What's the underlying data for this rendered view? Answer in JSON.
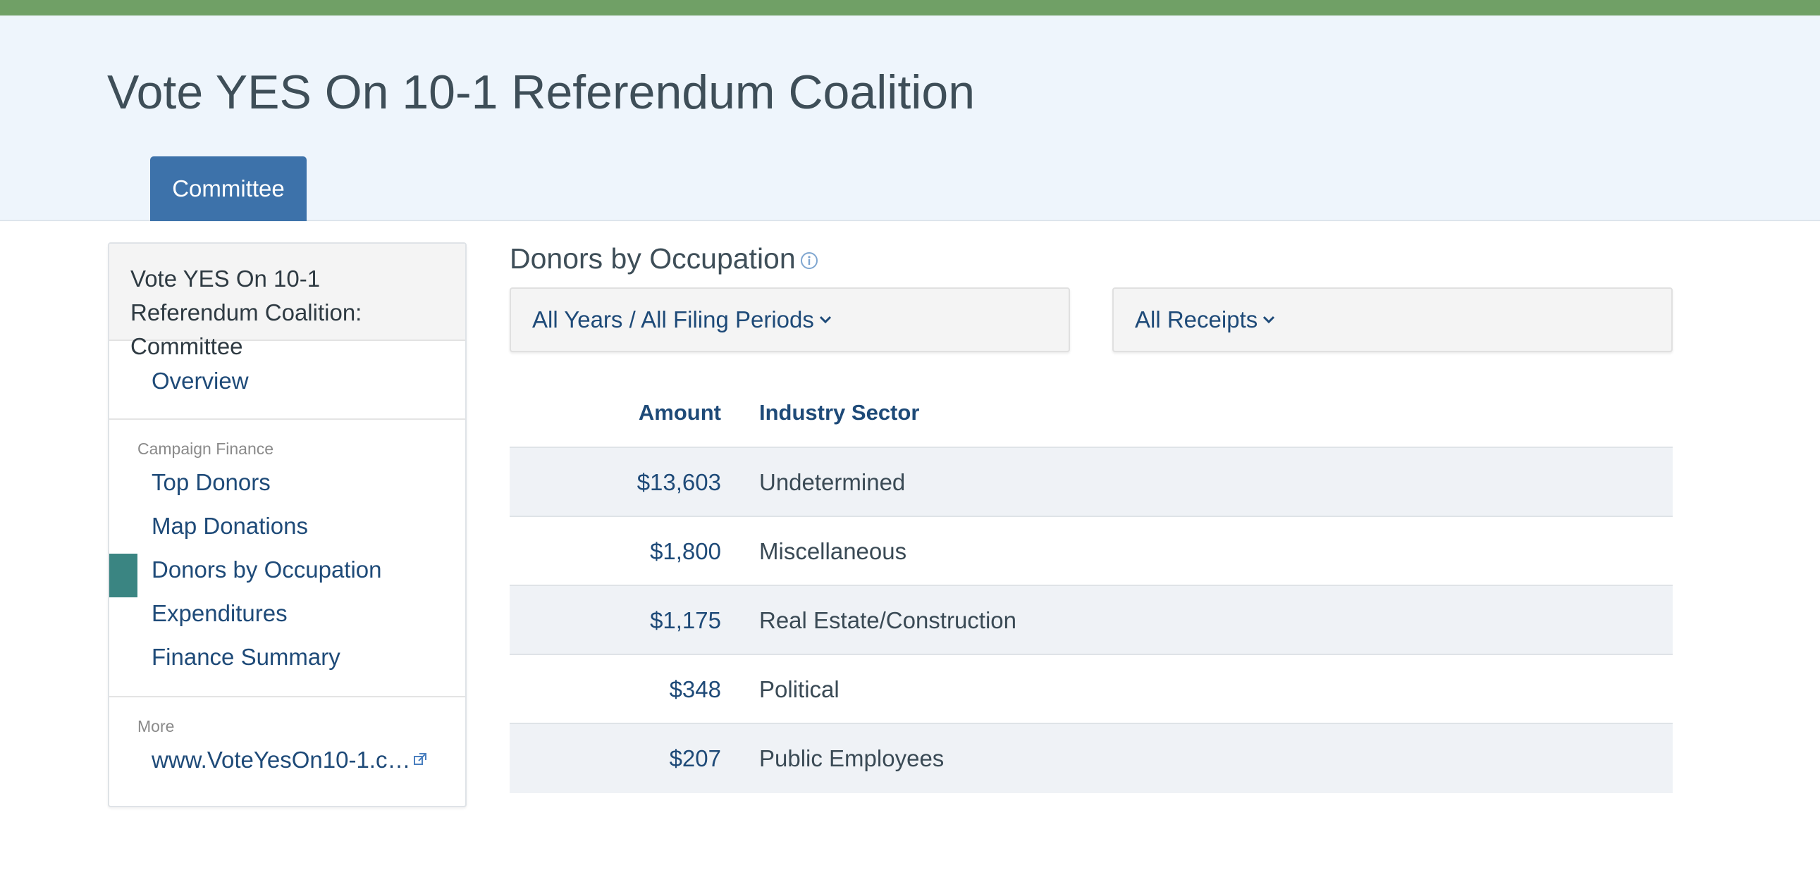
{
  "header": {
    "title": "Vote YES On 10-1 Referendum Coalition",
    "tab_label": "Committee",
    "accent_color": "#70a066",
    "tab_color": "#3d72aa"
  },
  "sidebar": {
    "heading": "Vote YES On 10-1 Referendum Coalition: Committee",
    "overview": "Overview",
    "campaign_finance_label": "Campaign Finance",
    "items": [
      {
        "label": "Top Donors",
        "active": false
      },
      {
        "label": "Map Donations",
        "active": false
      },
      {
        "label": "Donors by Occupation",
        "active": true
      },
      {
        "label": "Expenditures",
        "active": false
      },
      {
        "label": "Finance Summary",
        "active": false
      }
    ],
    "more_label": "More",
    "website_link": "www.VoteYesOn10-1.c…",
    "active_color": "#3a8582"
  },
  "main": {
    "title": "Donors by Occupation",
    "filter_period": "All Years / All Filing Periods",
    "filter_receipts": "All Receipts",
    "table": {
      "columns": [
        "Amount",
        "Industry Sector"
      ],
      "rows": [
        {
          "amount": "$13,603",
          "sector": "Undetermined"
        },
        {
          "amount": "$1,800",
          "sector": "Miscellaneous"
        },
        {
          "amount": "$1,175",
          "sector": "Real Estate/Construction"
        },
        {
          "amount": "$348",
          "sector": "Political"
        },
        {
          "amount": "$207",
          "sector": "Public Employees"
        }
      ]
    }
  },
  "icons": {
    "info": "info-circle-icon",
    "chevron": "chevron-down-icon",
    "external": "external-link-icon"
  }
}
